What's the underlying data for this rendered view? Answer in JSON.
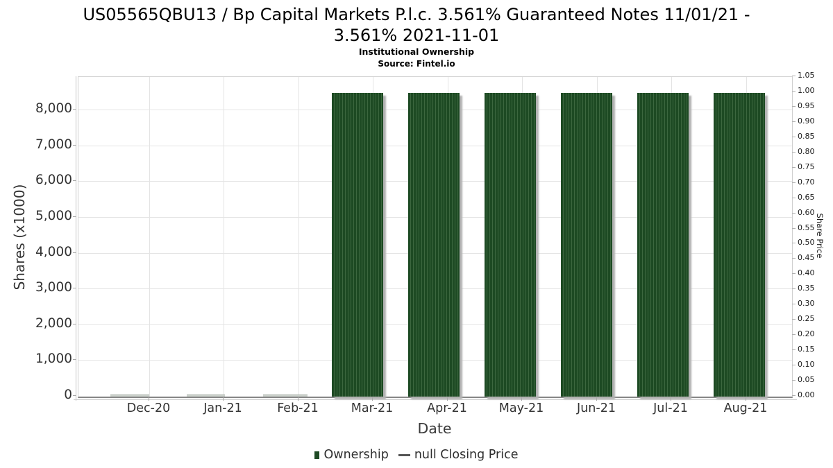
{
  "title": {
    "line1": "US05565QBU13 / Bp Capital Markets P.l.c. 3.561% Guaranteed Notes 11/01/21 -",
    "line2": "3.561% 2021-11-01"
  },
  "subtitle": "Institutional Ownership",
  "source": "Source: Fintel.io",
  "axes": {
    "left": {
      "label": "Shares (x1000)",
      "ticks": [
        "0",
        "1,000",
        "2,000",
        "3,000",
        "4,000",
        "5,000",
        "6,000",
        "7,000",
        "8,000"
      ]
    },
    "right": {
      "label": "Share Price",
      "ticks": [
        "0.00",
        "0.05",
        "0.10",
        "0.15",
        "0.20",
        "0.25",
        "0.30",
        "0.35",
        "0.40",
        "0.45",
        "0.50",
        "0.55",
        "0.60",
        "0.65",
        "0.70",
        "0.75",
        "0.80",
        "0.85",
        "0.90",
        "0.95",
        "1.00",
        "1.05"
      ]
    },
    "x": {
      "label": "Date",
      "ticks": [
        "Dec-20",
        "Jan-21",
        "Feb-21",
        "Mar-21",
        "Apr-21",
        "May-21",
        "Jun-21",
        "Jul-21",
        "Aug-21"
      ]
    }
  },
  "legend": {
    "items": [
      {
        "label": "Ownership",
        "marker": "square-icon",
        "color": "#1e4a24"
      },
      {
        "label": "null Closing Price",
        "marker": "line-icon",
        "color": "#555555"
      }
    ]
  },
  "colors": {
    "bar_green": "#1d4a23",
    "bar_stripe": "#3c673f",
    "bar_shadow": "#b2b2b2",
    "small_bar_gray": "#cdd2cd",
    "gridline": "#e4e4e4",
    "axis_line": "#868686",
    "tick_text": "#333333",
    "title_text": "#000000",
    "background": "#ffffff"
  },
  "chart_data": {
    "type": "bar",
    "title": "US05565QBU13 / Bp Capital Markets P.l.c. 3.561% Guaranteed Notes 11/01/21 - 3.561% 2021-11-01",
    "subtitle": "Institutional Ownership",
    "source": "Source: Fintel.io",
    "categories": [
      "Dec-20",
      "Jan-21",
      "Feb-21",
      "Mar-21",
      "Apr-21",
      "May-21",
      "Jun-21",
      "Jul-21",
      "Aug-21"
    ],
    "series": [
      {
        "name": "Ownership",
        "axis": "left",
        "unit": "shares x1000",
        "values": [
          40,
          40,
          40,
          8480,
          8480,
          8480,
          8480,
          8480,
          8480
        ],
        "color": "#1d4a23"
      },
      {
        "name": "null Closing Price",
        "axis": "right",
        "values": [
          null,
          null,
          null,
          null,
          null,
          null,
          null,
          null,
          null
        ],
        "color": "#555555"
      }
    ],
    "xlabel": "Date",
    "ylabel_left": "Shares (x1000)",
    "ylabel_right": "Share Price",
    "ylim_left": [
      0,
      8935
    ],
    "ylim_right": [
      0,
      1.045
    ],
    "left_tick_interval": 1000,
    "right_tick_interval": 0.05,
    "grid": true,
    "legend_position": "bottom"
  }
}
